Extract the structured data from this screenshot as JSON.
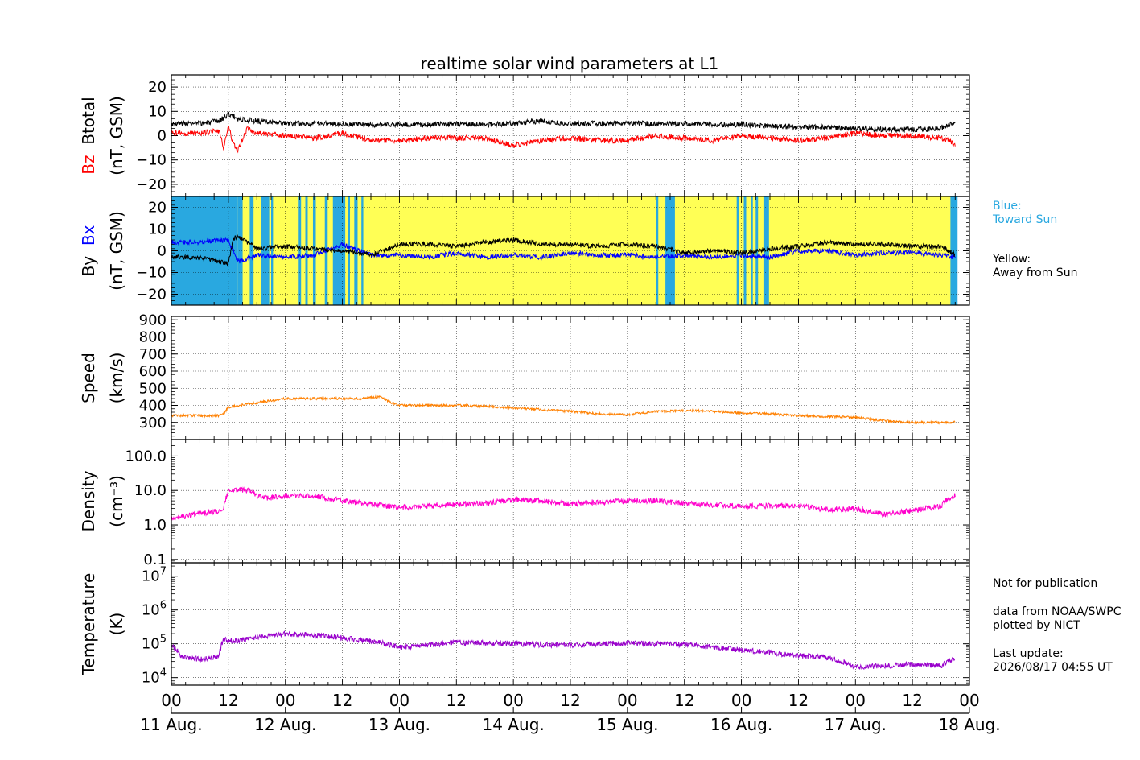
{
  "title": "realtime solar wind parameters at L1",
  "notes": {
    "blue_title": "Blue:",
    "blue_text": "Toward Sun",
    "yellow_title": "Yellow:",
    "yellow_text": "Away from Sun",
    "not_for_publication": "Not for publication",
    "data_source": "data from NOAA/SWPC",
    "plotted_by": "plotted by NICT",
    "last_update_label": "Last update:",
    "last_update_value": "2026/08/17 04:55 UT"
  },
  "colors": {
    "btotal": "#000000",
    "bz": "#ff0000",
    "bx": "#0000ff",
    "by": "#000000",
    "speed": "#ff8000",
    "density": "#ff00cc",
    "temperature": "#9900cc",
    "toward_sun": "#29a8e0",
    "away_from_sun": "#ffff55"
  },
  "chart_data": [
    {
      "type": "line",
      "panel": "magnetic-field-bz-btotal",
      "ylabel_series": [
        "Bz",
        "Btotal"
      ],
      "ylabel_units": "(nT, GSM)",
      "ylim": [
        -25,
        25
      ],
      "yticks": [
        20,
        10,
        0,
        -10,
        -20
      ],
      "ytick_labels": [
        "20",
        "10",
        "0",
        "−10",
        "−20"
      ],
      "x_unit": "hours since 11 Aug. 00 UT",
      "series": [
        {
          "name": "Btotal",
          "x": [
            0,
            6,
            10,
            12,
            14,
            18,
            24,
            30,
            36,
            42,
            48,
            54,
            60,
            66,
            72,
            78,
            84,
            90,
            96,
            102,
            108,
            114,
            120,
            126,
            132,
            138,
            144,
            150,
            156,
            162,
            165
          ],
          "y": [
            5,
            5,
            6,
            9,
            7,
            6,
            5,
            5,
            5,
            4.5,
            4.5,
            4.5,
            5,
            4.5,
            5,
            6,
            5,
            5,
            5,
            5,
            5,
            4.5,
            4.5,
            4,
            3.5,
            3.5,
            3,
            2.5,
            2.5,
            3,
            5.5
          ]
        },
        {
          "name": "Bz",
          "x": [
            0,
            6,
            10,
            11,
            12,
            13,
            14,
            16,
            18,
            24,
            30,
            36,
            42,
            48,
            54,
            60,
            66,
            72,
            78,
            84,
            90,
            96,
            102,
            108,
            114,
            120,
            126,
            132,
            138,
            144,
            150,
            156,
            162,
            164,
            165
          ],
          "y": [
            1,
            1,
            2,
            -5,
            4,
            -3,
            -6,
            3,
            1,
            0,
            -1,
            1,
            -2,
            -2,
            -1,
            -1,
            -1,
            -4,
            -2,
            -1,
            -2,
            -2,
            0,
            -1,
            -2,
            0,
            -1,
            -2,
            -1,
            1,
            0,
            0,
            -1,
            -2,
            -4
          ]
        }
      ]
    },
    {
      "type": "line",
      "panel": "magnetic-field-bx-by",
      "ylabel_series": [
        "By",
        "Bx"
      ],
      "ylabel_units": "(nT, GSM)",
      "ylim": [
        -25,
        25
      ],
      "yticks": [
        20,
        10,
        0,
        -10,
        -20
      ],
      "ytick_labels": [
        "20",
        "10",
        "0",
        "−10",
        "−20"
      ],
      "sector_bands": [
        [
          0,
          14,
          "toward"
        ],
        [
          14,
          165,
          "away"
        ],
        [
          14,
          15,
          "toward"
        ],
        [
          16.5,
          17.3,
          "toward"
        ],
        [
          18.9,
          20.6,
          "toward"
        ],
        [
          21,
          21.4,
          "toward"
        ],
        [
          26.8,
          27.3,
          "toward"
        ],
        [
          28.2,
          28.7,
          "toward"
        ],
        [
          29.8,
          30.4,
          "toward"
        ],
        [
          32.3,
          32.9,
          "toward"
        ],
        [
          34,
          36.6,
          "toward"
        ],
        [
          37.2,
          37.6,
          "toward"
        ],
        [
          38.5,
          39.2,
          "toward"
        ],
        [
          40,
          40.4,
          "toward"
        ],
        [
          102,
          102.5,
          "toward"
        ],
        [
          104,
          106,
          "toward"
        ],
        [
          119,
          119.5,
          "toward"
        ],
        [
          120.5,
          121,
          "toward"
        ],
        [
          122,
          122.4,
          "toward"
        ],
        [
          123,
          123.5,
          "toward"
        ],
        [
          124.8,
          125.8,
          "toward"
        ],
        [
          164,
          165.5,
          "toward"
        ]
      ],
      "series": [
        {
          "name": "Bx",
          "x": [
            0,
            6,
            12,
            14,
            18,
            24,
            30,
            36,
            42,
            48,
            54,
            60,
            66,
            72,
            78,
            84,
            90,
            96,
            102,
            108,
            114,
            120,
            126,
            132,
            138,
            144,
            150,
            156,
            162,
            165
          ],
          "y": [
            4,
            4,
            5,
            -5,
            -2,
            -3,
            -2,
            3,
            -2,
            -2,
            -3,
            -1,
            -3,
            -2,
            -3,
            -1,
            -2,
            -2,
            -3,
            -2,
            -3,
            -2,
            -3,
            0,
            0,
            -2,
            -1,
            -1,
            -2,
            -3
          ]
        },
        {
          "name": "By",
          "x": [
            0,
            6,
            12,
            13,
            14,
            18,
            24,
            30,
            36,
            42,
            48,
            54,
            60,
            66,
            72,
            78,
            84,
            90,
            96,
            102,
            108,
            114,
            120,
            126,
            132,
            138,
            144,
            150,
            156,
            162,
            165
          ],
          "y": [
            -3,
            -3,
            -6,
            5,
            7,
            1,
            2,
            1,
            0,
            -2,
            3,
            3,
            2,
            4,
            5,
            3,
            3,
            2,
            3,
            2,
            -1,
            0,
            -1,
            1,
            2,
            4,
            3,
            3,
            2,
            2,
            -2
          ]
        }
      ]
    },
    {
      "type": "line",
      "panel": "speed",
      "ylabel": "Speed",
      "yunits": "(km/s)",
      "ylim": [
        200,
        920
      ],
      "yticks": [
        900,
        800,
        700,
        600,
        500,
        400,
        300
      ],
      "ytick_labels": [
        "900",
        "800",
        "700",
        "600",
        "500",
        "400",
        "300"
      ],
      "series": [
        {
          "name": "Speed",
          "x": [
            0,
            6,
            10,
            11,
            12,
            14,
            18,
            24,
            30,
            36,
            40,
            44,
            46,
            48,
            54,
            60,
            66,
            72,
            78,
            84,
            90,
            96,
            102,
            108,
            114,
            120,
            126,
            132,
            138,
            144,
            150,
            156,
            162,
            165
          ],
          "y": [
            340,
            340,
            340,
            350,
            390,
            400,
            415,
            440,
            440,
            440,
            440,
            450,
            420,
            400,
            400,
            400,
            395,
            385,
            375,
            365,
            350,
            345,
            365,
            370,
            365,
            355,
            350,
            340,
            335,
            330,
            310,
            300,
            300,
            302
          ]
        }
      ]
    },
    {
      "type": "line",
      "panel": "density",
      "ylabel": "Density",
      "yunits": "(cm⁻³)",
      "yscale": "log",
      "ylim": [
        0.08,
        300
      ],
      "yticks": [
        100,
        10,
        1,
        0.1
      ],
      "ytick_labels": [
        "100.0",
        "10.0",
        "1.0",
        "0.1"
      ],
      "series": [
        {
          "name": "Density",
          "x": [
            0,
            4,
            8,
            10,
            11,
            12,
            14,
            16,
            18,
            20,
            24,
            30,
            36,
            42,
            48,
            54,
            60,
            66,
            72,
            78,
            84,
            90,
            96,
            102,
            108,
            114,
            120,
            126,
            132,
            138,
            144,
            150,
            156,
            162,
            165
          ],
          "y": [
            1.5,
            1.9,
            2.3,
            2.5,
            3,
            9,
            11,
            10,
            7,
            6,
            7,
            7,
            5,
            4,
            3.2,
            3.5,
            4,
            4.2,
            5.5,
            5,
            4,
            4.5,
            5,
            5,
            4.2,
            3.8,
            3.5,
            3.6,
            3.5,
            2.8,
            3,
            2,
            2.6,
            3.5,
            7.5
          ]
        }
      ]
    },
    {
      "type": "line",
      "panel": "temperature",
      "ylabel": "Temperature",
      "yunits": "(K)",
      "yscale": "log",
      "ylim": [
        6000,
        25000000
      ],
      "yticks": [
        10000000,
        1000000,
        100000,
        10000
      ],
      "ytick_labels": [
        "10^7",
        "10^6",
        "10^5",
        "10^4"
      ],
      "series": [
        {
          "name": "Temperature",
          "x": [
            0,
            2,
            4,
            6,
            8,
            10,
            11,
            12,
            14,
            18,
            24,
            30,
            36,
            42,
            48,
            54,
            60,
            66,
            72,
            78,
            84,
            90,
            96,
            102,
            108,
            114,
            120,
            126,
            132,
            138,
            144,
            150,
            156,
            162,
            165
          ],
          "y": [
            100000,
            40000,
            38000,
            35000,
            38000,
            40000,
            130000,
            130000,
            120000,
            160000,
            200000,
            180000,
            150000,
            120000,
            80000,
            90000,
            110000,
            105000,
            100000,
            95000,
            90000,
            100000,
            105000,
            100000,
            95000,
            80000,
            65000,
            55000,
            45000,
            40000,
            20000,
            22000,
            25000,
            22000,
            40000
          ]
        }
      ]
    }
  ],
  "xaxis": {
    "range_hours": [
      0,
      168
    ],
    "tick_every_hours": 12,
    "hour_labels": [
      "00",
      "12",
      "00",
      "12",
      "00",
      "12",
      "00",
      "12",
      "00",
      "12",
      "00",
      "12",
      "00",
      "12",
      "00"
    ],
    "day_labels": [
      "11 Aug.",
      "12 Aug.",
      "13 Aug.",
      "14 Aug.",
      "15 Aug.",
      "16 Aug.",
      "17 Aug.",
      "18 Aug."
    ],
    "grid": true
  }
}
